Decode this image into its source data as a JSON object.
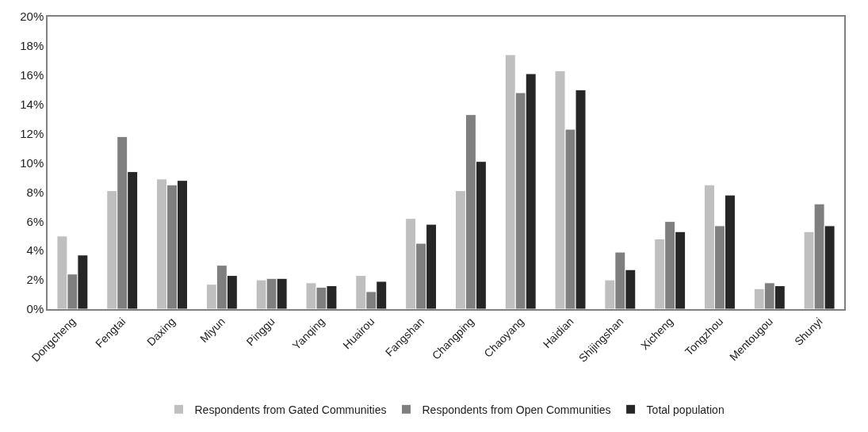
{
  "chart_data": {
    "type": "bar",
    "categories": [
      "Dongcheng",
      "Fengtai",
      "Daxing",
      "Miyun",
      "Pinggu",
      "Yanqing",
      "Huairou",
      "Fangshan",
      "Changping",
      "Chaoyang",
      "Haidian",
      "Shijingshan",
      "Xicheng",
      "Tongzhou",
      "Mentougou",
      "Shunyi"
    ],
    "series": [
      {
        "name": "Respondents from Gated Communities",
        "color": "#bfbfbf",
        "values": [
          5.0,
          8.1,
          8.9,
          1.7,
          2.0,
          1.8,
          2.3,
          6.2,
          8.1,
          17.4,
          16.3,
          2.0,
          4.8,
          8.5,
          1.4,
          5.3
        ]
      },
      {
        "name": "Respondents from Open Communities",
        "color": "#7f7f7f",
        "values": [
          2.4,
          11.8,
          8.5,
          3.0,
          2.1,
          1.5,
          1.2,
          4.5,
          13.3,
          14.8,
          12.3,
          3.9,
          6.0,
          5.7,
          1.8,
          7.2
        ]
      },
      {
        "name": "Total population",
        "color": "#262626",
        "values": [
          3.7,
          9.4,
          8.8,
          2.3,
          2.1,
          1.6,
          1.9,
          5.8,
          10.1,
          16.1,
          15.0,
          2.7,
          5.3,
          7.8,
          1.6,
          5.7
        ]
      }
    ],
    "ylim": [
      0,
      20
    ],
    "yticks": [
      {
        "value": 0,
        "label": "0%"
      },
      {
        "value": 2,
        "label": "2%"
      },
      {
        "value": 4,
        "label": "4%"
      },
      {
        "value": 6,
        "label": "6%"
      },
      {
        "value": 8,
        "label": "8%"
      },
      {
        "value": 10,
        "label": "10%"
      },
      {
        "value": 12,
        "label": "12%"
      },
      {
        "value": 14,
        "label": "14%"
      },
      {
        "value": 16,
        "label": "16%"
      },
      {
        "value": 18,
        "label": "18%"
      },
      {
        "value": 20,
        "label": "20%"
      }
    ],
    "legend": "bottom"
  }
}
